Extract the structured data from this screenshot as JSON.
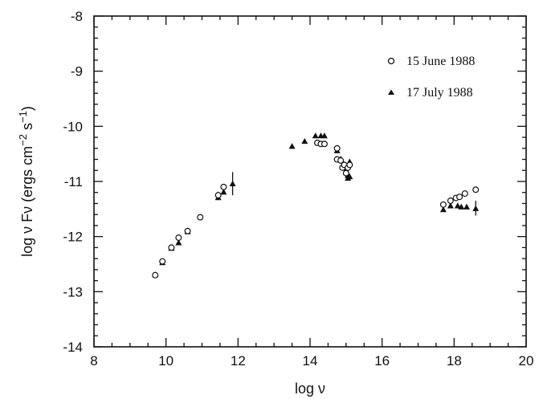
{
  "chart_data": {
    "type": "scatter",
    "title": "",
    "xlabel": "log ν",
    "ylabel_main": "log ν Fν (ergs cm",
    "ylabel_sup1": "−2",
    "ylabel_mid": " s",
    "ylabel_sup2": "−1",
    "ylabel_end": ")",
    "xlim": [
      8,
      20
    ],
    "ylim": [
      -14,
      -8
    ],
    "x_ticks": [
      8,
      10,
      12,
      14,
      16,
      18,
      20
    ],
    "x_tick_labels": [
      "8",
      "10",
      "12",
      "14",
      "16",
      "18",
      "20"
    ],
    "y_ticks": [
      -14,
      -13,
      -12,
      -11,
      -10,
      -9,
      -8
    ],
    "y_tick_labels": [
      "-14",
      "-13",
      "-12",
      "-11",
      "-10",
      "-9",
      "-8"
    ],
    "grid": false,
    "legend_position": "top-right",
    "series": [
      {
        "name": "15 June 1988",
        "marker": "open-circle",
        "points": [
          [
            9.7,
            -12.7
          ],
          [
            9.9,
            -12.45
          ],
          [
            10.15,
            -12.2
          ],
          [
            10.35,
            -12.02
          ],
          [
            10.6,
            -11.9
          ],
          [
            10.95,
            -11.65
          ],
          [
            11.45,
            -11.25
          ],
          [
            11.6,
            -11.1
          ],
          [
            14.2,
            -10.3
          ],
          [
            14.3,
            -10.32
          ],
          [
            14.4,
            -10.32
          ],
          [
            14.75,
            -10.4
          ],
          [
            14.75,
            -10.6
          ],
          [
            14.85,
            -10.62
          ],
          [
            14.9,
            -10.75
          ],
          [
            14.95,
            -10.7
          ],
          [
            15.0,
            -10.85
          ],
          [
            15.05,
            -10.75
          ],
          [
            15.1,
            -10.7
          ],
          [
            17.7,
            -11.42
          ],
          [
            17.9,
            -11.35
          ],
          [
            18.05,
            -11.3
          ],
          [
            18.15,
            -11.28
          ],
          [
            18.3,
            -11.22
          ],
          [
            18.6,
            -11.15
          ]
        ]
      },
      {
        "name": "17 July 1988",
        "marker": "filled-triangle",
        "points": [
          [
            9.7,
            -12.7
          ],
          [
            9.9,
            -12.48
          ],
          [
            10.15,
            -12.22
          ],
          [
            10.35,
            -12.12
          ],
          [
            10.6,
            -11.92
          ],
          [
            11.45,
            -11.3
          ],
          [
            11.6,
            -11.2
          ],
          [
            11.85,
            -11.05
          ],
          [
            13.5,
            -10.37
          ],
          [
            13.85,
            -10.28
          ],
          [
            14.15,
            -10.18
          ],
          [
            14.3,
            -10.18
          ],
          [
            14.4,
            -10.18
          ],
          [
            14.75,
            -10.45
          ],
          [
            14.85,
            -10.6
          ],
          [
            14.95,
            -10.7
          ],
          [
            15.0,
            -10.8
          ],
          [
            15.05,
            -10.9
          ],
          [
            15.05,
            -10.95
          ],
          [
            15.1,
            -10.65
          ],
          [
            15.1,
            -10.92
          ],
          [
            17.7,
            -11.52
          ],
          [
            17.9,
            -11.45
          ],
          [
            18.1,
            -11.45
          ],
          [
            18.2,
            -11.47
          ],
          [
            18.35,
            -11.47
          ],
          [
            18.6,
            -11.5
          ]
        ]
      }
    ],
    "error_bars": [
      {
        "x": 11.85,
        "y_low": -11.25,
        "y_high": -10.83
      },
      {
        "x": 18.6,
        "y_low": -11.62,
        "y_high": -11.35
      }
    ]
  }
}
